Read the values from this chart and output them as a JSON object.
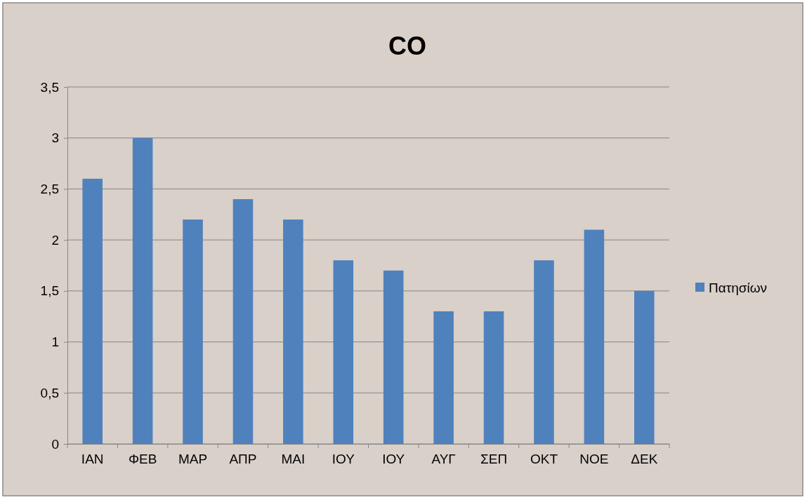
{
  "chart_data": {
    "type": "bar",
    "title": "CO",
    "categories": [
      "ΙΑΝ",
      "ΦΕΒ",
      "ΜΑΡ",
      "ΑΠΡ",
      "ΜΑΙ",
      "ΙΟΥ",
      "ΙΟΥ",
      "ΑΥΓ",
      "ΣΕΠ",
      "ΟΚΤ",
      "ΝΟΕ",
      "ΔΕΚ"
    ],
    "series": [
      {
        "name": "Πατησίων",
        "color": "#4f81bd",
        "values": [
          2.6,
          3,
          2.2,
          2.4,
          2.2,
          1.8,
          1.7,
          1.3,
          1.3,
          1.8,
          2.1,
          1.5
        ]
      }
    ],
    "ylim": [
      0,
      3.5
    ],
    "yticks": [
      0,
      {
        "value": 0.5,
        "label": "0,5"
      },
      1,
      {
        "value": 1.5,
        "label": "1,5"
      },
      2,
      {
        "value": 2.5,
        "label": "2,5"
      },
      3,
      {
        "value": 3.5,
        "label": "3,5"
      }
    ],
    "grid": "y",
    "legend": "right"
  }
}
